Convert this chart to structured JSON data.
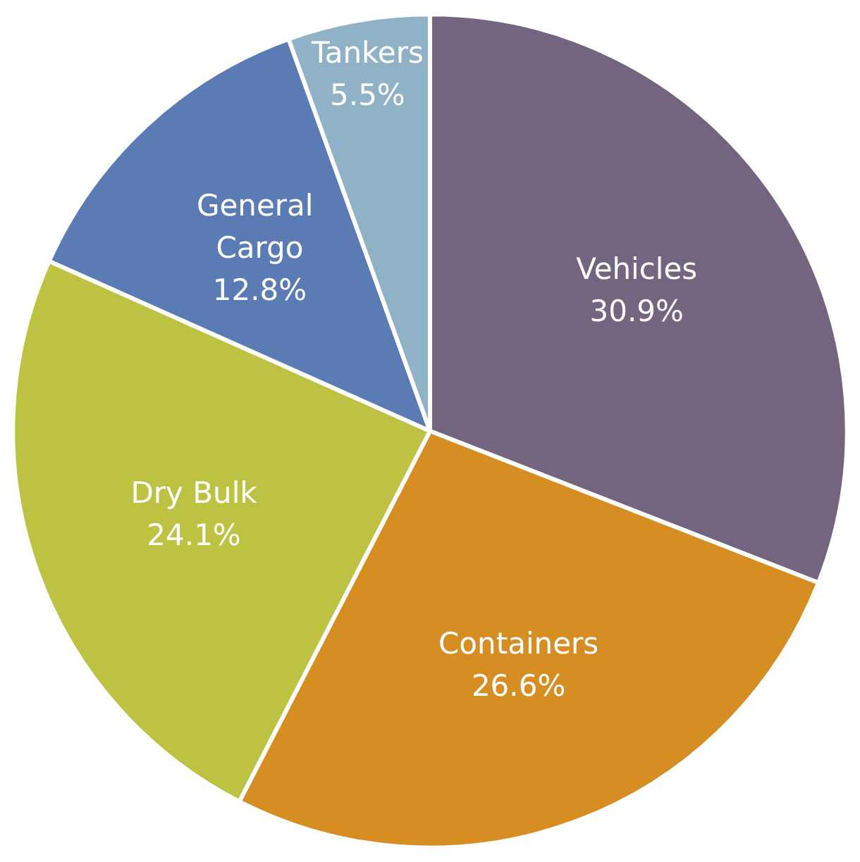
{
  "chart_data": {
    "type": "pie",
    "categories": [
      "Vehicles",
      "Containers",
      "Dry Bulk",
      "General Cargo",
      "Tankers"
    ],
    "values": [
      30.9,
      26.6,
      24.1,
      12.8,
      5.5
    ],
    "value_labels": [
      "30.9%",
      "26.6%",
      "24.1%",
      "12.8%",
      "5.5%"
    ],
    "colors": [
      "#73657f",
      "#d68e23",
      "#bdc242",
      "#5b7bb5",
      "#8fb2c7"
    ]
  }
}
